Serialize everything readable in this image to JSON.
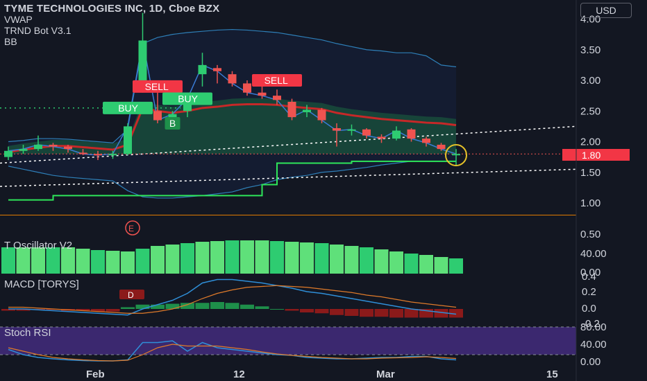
{
  "header": {
    "title": "TYME TECHNOLOGIES INC, 1D, Cboe BZX",
    "indicators": [
      "VWAP",
      "TRND Bot V3.1",
      "BB"
    ],
    "currency": "USD"
  },
  "price_pane": {
    "yticks": [
      "4.00",
      "3.50",
      "3.00",
      "2.50",
      "2.00",
      "1.50",
      "1.00"
    ],
    "last_price": "1.80",
    "colors": {
      "up": "#26a69a",
      "down": "#ef5350",
      "buy": "#2ecc71",
      "sell": "#f23645"
    }
  },
  "osc_pane": {
    "title": "T Oscillator V2",
    "yticks": [
      "0.50",
      "40.00",
      "0.00"
    ]
  },
  "macd_pane": {
    "title": "MACD [TORYS]",
    "yticks": [
      "0.4",
      "0.2",
      "0.0",
      "-0.2"
    ]
  },
  "stoch_pane": {
    "title": "Stoch RSI",
    "yticks": [
      "80.00",
      "40.00",
      "0.00"
    ]
  },
  "xaxis": {
    "labels": [
      "Feb",
      "12",
      "Mar",
      "15"
    ]
  },
  "chart_data": {
    "type": "candlestick",
    "title": "TYME TECHNOLOGIES INC, 1D, Cboe BZX",
    "ylim": [
      0.8,
      4.2
    ],
    "candles": [
      {
        "o": 1.75,
        "h": 1.92,
        "l": 1.7,
        "c": 1.85
      },
      {
        "o": 1.85,
        "h": 1.95,
        "l": 1.8,
        "c": 1.88
      },
      {
        "o": 1.88,
        "h": 2.1,
        "l": 1.85,
        "c": 1.95
      },
      {
        "o": 1.95,
        "h": 1.98,
        "l": 1.85,
        "c": 1.92
      },
      {
        "o": 1.92,
        "h": 1.95,
        "l": 1.82,
        "c": 1.88
      },
      {
        "o": 1.82,
        "h": 1.88,
        "l": 1.78,
        "c": 1.8
      },
      {
        "o": 1.8,
        "h": 1.85,
        "l": 1.7,
        "c": 1.78
      },
      {
        "o": 1.78,
        "h": 1.85,
        "l": 1.72,
        "c": 1.8
      },
      {
        "o": 1.8,
        "h": 2.3,
        "l": 1.78,
        "c": 2.25
      },
      {
        "o": 2.95,
        "h": 4.1,
        "l": 2.8,
        "c": 3.65
      },
      {
        "o": 2.5,
        "h": 2.9,
        "l": 2.3,
        "c": 2.35
      },
      {
        "o": 2.35,
        "h": 2.5,
        "l": 2.3,
        "c": 2.45
      },
      {
        "o": 2.5,
        "h": 2.75,
        "l": 2.4,
        "c": 2.7
      },
      {
        "o": 3.1,
        "h": 3.45,
        "l": 2.9,
        "c": 3.25
      },
      {
        "o": 3.2,
        "h": 3.25,
        "l": 2.95,
        "c": 3.15
      },
      {
        "o": 3.1,
        "h": 3.15,
        "l": 2.9,
        "c": 2.95
      },
      {
        "o": 2.95,
        "h": 3.0,
        "l": 2.75,
        "c": 2.8
      },
      {
        "o": 2.8,
        "h": 2.9,
        "l": 2.7,
        "c": 2.75
      },
      {
        "o": 2.75,
        "h": 2.85,
        "l": 2.6,
        "c": 2.68
      },
      {
        "o": 2.65,
        "h": 2.7,
        "l": 2.35,
        "c": 2.4
      },
      {
        "o": 2.48,
        "h": 2.6,
        "l": 2.4,
        "c": 2.52
      },
      {
        "o": 2.52,
        "h": 2.55,
        "l": 2.3,
        "c": 2.35
      },
      {
        "o": 2.22,
        "h": 2.3,
        "l": 1.92,
        "c": 2.18
      },
      {
        "o": 2.18,
        "h": 2.28,
        "l": 2.1,
        "c": 2.2
      },
      {
        "o": 2.2,
        "h": 2.22,
        "l": 2.05,
        "c": 2.1
      },
      {
        "o": 2.08,
        "h": 2.12,
        "l": 1.98,
        "c": 2.05
      },
      {
        "o": 2.05,
        "h": 2.25,
        "l": 2.02,
        "c": 2.18
      },
      {
        "o": 2.2,
        "h": 2.22,
        "l": 2.0,
        "c": 2.05
      },
      {
        "o": 2.05,
        "h": 2.08,
        "l": 1.92,
        "c": 1.98
      },
      {
        "o": 1.95,
        "h": 1.98,
        "l": 1.85,
        "c": 1.88
      },
      {
        "o": 1.8,
        "h": 1.88,
        "l": 1.62,
        "c": 1.8
      }
    ],
    "vwap": [
      1.78,
      1.82,
      1.85,
      1.88,
      1.88,
      1.86,
      1.84,
      1.82,
      1.9,
      2.5,
      2.45,
      2.42,
      2.45,
      2.5,
      2.52,
      2.55,
      2.56,
      2.56,
      2.55,
      2.52,
      2.5,
      2.48,
      2.42,
      2.38,
      2.35,
      2.32,
      2.3,
      2.28,
      2.26,
      2.25,
      2.22
    ],
    "bb_upper": [
      2.0,
      2.02,
      2.05,
      2.05,
      2.04,
      2.02,
      2.0,
      1.98,
      2.2,
      3.6,
      3.7,
      3.75,
      3.78,
      3.8,
      3.82,
      3.83,
      3.82,
      3.8,
      3.78,
      3.74,
      3.7,
      3.66,
      3.6,
      3.55,
      3.5,
      3.48,
      3.45,
      3.45,
      3.4,
      3.25,
      3.22
    ],
    "bb_lower": [
      1.6,
      1.55,
      1.5,
      1.45,
      1.42,
      1.4,
      1.38,
      1.36,
      1.2,
      1.1,
      1.08,
      1.08,
      1.1,
      1.12,
      1.15,
      1.18,
      1.25,
      1.3,
      1.38,
      1.42,
      1.45,
      1.5,
      1.52,
      1.55,
      1.58,
      1.62,
      1.65,
      1.68,
      1.68,
      1.68,
      1.68
    ],
    "trend_line": [
      1.05,
      1.05,
      1.05,
      1.12,
      1.12,
      1.12,
      1.12,
      1.12,
      1.12,
      1.12,
      1.12,
      1.12,
      1.12,
      1.12,
      1.12,
      1.12,
      1.12,
      1.3,
      1.65,
      1.65,
      1.65,
      1.65,
      1.65,
      1.68,
      1.68,
      1.68,
      1.68,
      1.68,
      1.68,
      1.68,
      1.68
    ],
    "signals": [
      {
        "label": "BUY",
        "index": 8,
        "price": 2.55
      },
      {
        "label": "SELL",
        "index": 10,
        "price": 2.9
      },
      {
        "label": "BUY",
        "index": 12,
        "price": 2.7
      },
      {
        "label": "SELL",
        "index": 18,
        "price": 3.0
      },
      {
        "label": "B",
        "index": 11,
        "price": 2.3
      },
      {
        "label": "E",
        "index": 8,
        "price": 0.8
      },
      {
        "label": "D",
        "index": 8,
        "price": 0.0
      }
    ],
    "oscillator": [
      0.38,
      0.38,
      0.38,
      0.38,
      0.38,
      0.36,
      0.34,
      0.33,
      0.32,
      0.36,
      0.4,
      0.42,
      0.44,
      0.46,
      0.47,
      0.48,
      0.48,
      0.48,
      0.47,
      0.46,
      0.45,
      0.44,
      0.42,
      0.4,
      0.38,
      0.35,
      0.32,
      0.29,
      0.27,
      0.24,
      0.22
    ],
    "macd_hist": [
      -0.02,
      -0.02,
      -0.01,
      -0.01,
      -0.02,
      -0.02,
      -0.03,
      -0.03,
      0.02,
      0.05,
      0.05,
      0.06,
      0.07,
      0.07,
      0.08,
      0.07,
      0.05,
      0.03,
      0.0,
      -0.02,
      -0.04,
      -0.05,
      -0.07,
      -0.08,
      -0.09,
      -0.09,
      -0.1,
      -0.1,
      -0.1,
      -0.1,
      -0.1
    ],
    "macd_line": [
      0.0,
      0.0,
      -0.01,
      -0.02,
      -0.03,
      -0.04,
      -0.05,
      -0.06,
      -0.07,
      0.0,
      0.05,
      0.1,
      0.18,
      0.3,
      0.34,
      0.34,
      0.32,
      0.3,
      0.27,
      0.24,
      0.2,
      0.18,
      0.15,
      0.12,
      0.09,
      0.06,
      0.03,
      0.0,
      -0.02,
      -0.04,
      -0.06
    ],
    "signal_line": [
      0.02,
      0.02,
      0.01,
      0.0,
      -0.01,
      -0.02,
      -0.03,
      -0.04,
      -0.05,
      -0.05,
      -0.03,
      0.0,
      0.05,
      0.12,
      0.18,
      0.22,
      0.25,
      0.26,
      0.27,
      0.26,
      0.25,
      0.23,
      0.21,
      0.19,
      0.16,
      0.14,
      0.11,
      0.08,
      0.06,
      0.04,
      0.02
    ],
    "stoch_k": [
      35,
      20,
      12,
      8,
      5,
      3,
      2,
      2,
      5,
      55,
      55,
      60,
      30,
      55,
      40,
      35,
      30,
      25,
      20,
      18,
      12,
      10,
      8,
      8,
      10,
      12,
      12,
      15,
      15,
      8,
      5
    ],
    "stoch_d": [
      40,
      30,
      20,
      12,
      8,
      5,
      3,
      2,
      4,
      20,
      40,
      50,
      45,
      45,
      45,
      40,
      35,
      28,
      22,
      18,
      15,
      12,
      10,
      8,
      8,
      10,
      11,
      12,
      14,
      12,
      9
    ]
  }
}
